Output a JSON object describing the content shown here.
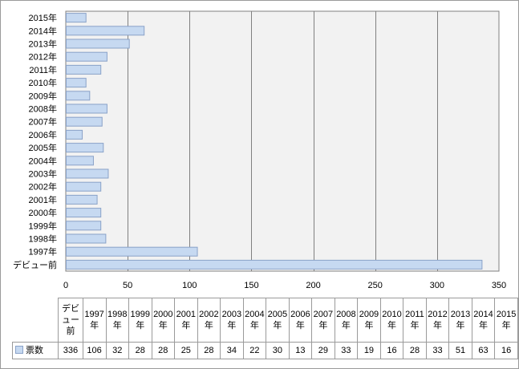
{
  "chart_data": {
    "type": "bar",
    "orientation": "horizontal",
    "categories": [
      "デビュー前",
      "1997年",
      "1998年",
      "1999年",
      "2000年",
      "2001年",
      "2002年",
      "2003年",
      "2004年",
      "2005年",
      "2006年",
      "2007年",
      "2008年",
      "2009年",
      "2010年",
      "2011年",
      "2012年",
      "2013年",
      "2014年",
      "2015年"
    ],
    "series": [
      {
        "name": "票数",
        "values": [
          336,
          106,
          32,
          28,
          28,
          25,
          28,
          34,
          22,
          30,
          13,
          29,
          33,
          19,
          16,
          28,
          33,
          51,
          63,
          16
        ]
      }
    ],
    "xlim": [
      0,
      350
    ],
    "xticks": [
      0,
      50,
      100,
      150,
      200,
      250,
      300,
      350
    ],
    "grid": true,
    "legend": "data-table-below",
    "bar_color": "#c6d9f1",
    "bar_edge_color": "#8aa2c8",
    "plot_background": "#f2f2f2",
    "grid_color": "#808080"
  }
}
